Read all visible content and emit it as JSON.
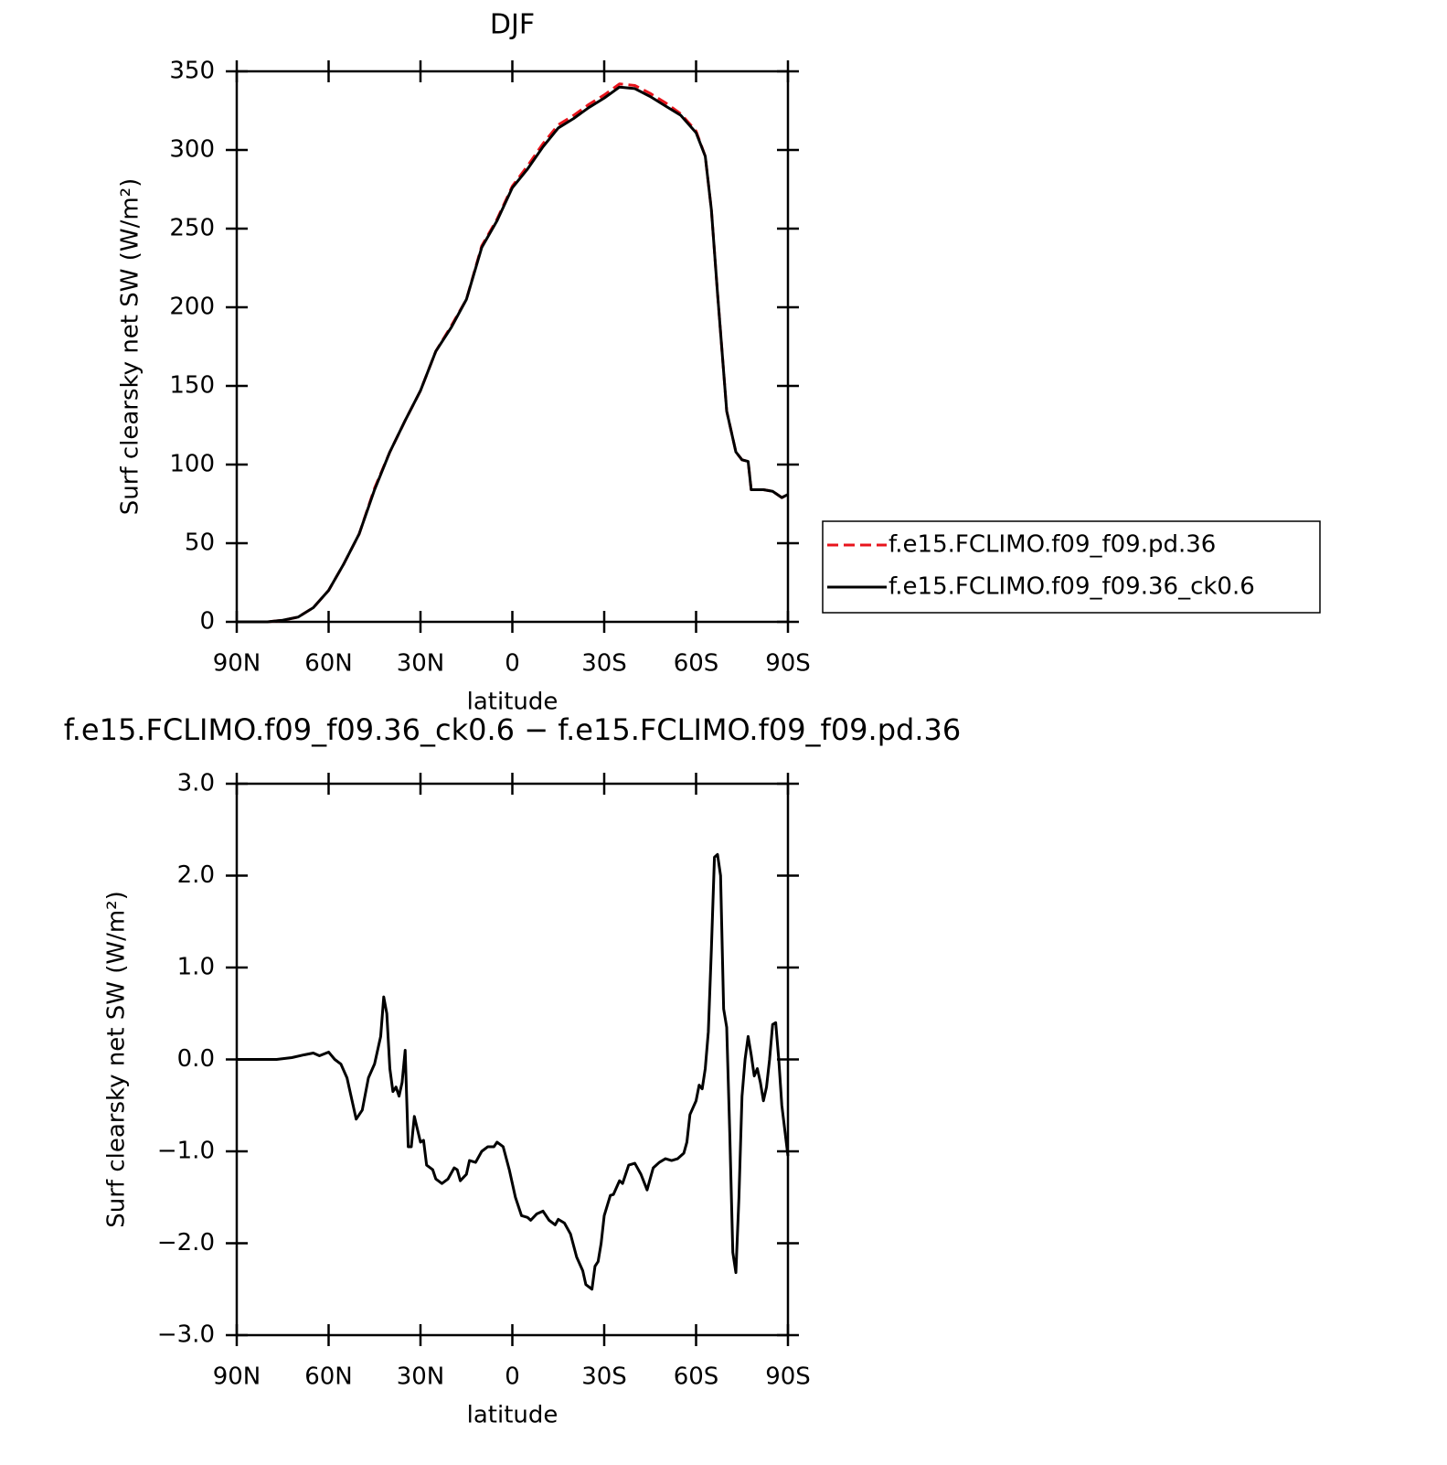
{
  "chart_data": [
    {
      "type": "line",
      "title": "DJF",
      "xlabel": "latitude",
      "ylabel": "Surf clearsky net SW (W/m²)",
      "xlim": [
        90,
        -90
      ],
      "xticks": [
        {
          "value": 90,
          "label": "90N"
        },
        {
          "value": 60,
          "label": "60N"
        },
        {
          "value": 30,
          "label": "30N"
        },
        0,
        {
          "value": -30,
          "label": "30S"
        },
        {
          "value": -60,
          "label": "60S"
        },
        {
          "value": -90,
          "label": "90S"
        }
      ],
      "ylim": [
        0,
        350
      ],
      "yticks": [
        0,
        50,
        100,
        150,
        200,
        250,
        300,
        350
      ],
      "legend": "right",
      "x": [
        90,
        80,
        75,
        70,
        65,
        60,
        55,
        50,
        45,
        40,
        35,
        30,
        25,
        20,
        15,
        10,
        5,
        0,
        -5,
        -10,
        -15,
        -20,
        -25,
        -30,
        -35,
        -40,
        -45,
        -50,
        -55,
        -60,
        -63,
        -65,
        -67,
        -70,
        -73,
        -75,
        -77,
        -78,
        -82,
        -85,
        -88,
        -90
      ],
      "series": [
        {
          "name": "f.e15.FCLIMO.f09_f09.pd.36",
          "color": "#e8141c",
          "dash": true,
          "values": [
            0,
            0,
            1,
            3,
            9,
            20,
            37,
            56,
            85,
            108,
            128,
            147,
            172,
            188,
            205,
            239,
            256,
            277,
            290,
            304,
            316,
            322,
            329,
            335,
            342,
            341,
            336,
            330,
            323,
            312,
            296,
            262,
            209,
            134,
            108,
            103,
            102,
            84,
            84,
            83,
            79,
            81
          ]
        },
        {
          "name": "f.e15.FCLIMO.f09_f09.36_ck0.6",
          "color": "#000000",
          "dash": false,
          "values": [
            0,
            0,
            1,
            3,
            9,
            20,
            37,
            56,
            84,
            108,
            128,
            147,
            172,
            187,
            205,
            238,
            255,
            276,
            288,
            302,
            314,
            320,
            327,
            333,
            340,
            339,
            334,
            328,
            322,
            311,
            296,
            262,
            209,
            134,
            108,
            103,
            102,
            84,
            84,
            83,
            79,
            81
          ]
        }
      ]
    },
    {
      "type": "line",
      "title": "f.e15.FCLIMO.f09_f09.36_ck0.6 − f.e15.FCLIMO.f09_f09.pd.36",
      "xlabel": "latitude",
      "ylabel": "Surf clearsky net SW (W/m²)",
      "xlim": [
        90,
        -90
      ],
      "xticks": [
        {
          "value": 90,
          "label": "90N"
        },
        {
          "value": 60,
          "label": "60N"
        },
        {
          "value": 30,
          "label": "30N"
        },
        0,
        {
          "value": -30,
          "label": "30S"
        },
        {
          "value": -60,
          "label": "60S"
        },
        {
          "value": -90,
          "label": "90S"
        }
      ],
      "ylim": [
        -3,
        3
      ],
      "yticks": [
        {
          "value": -3,
          "label": "−3.0"
        },
        {
          "value": -2,
          "label": "−2.0"
        },
        {
          "value": -1,
          "label": "−1.0"
        },
        {
          "value": 0,
          "label": "0.0"
        },
        {
          "value": 1,
          "label": "1.0"
        },
        {
          "value": 2,
          "label": "2.0"
        },
        {
          "value": 3,
          "label": "3.0"
        }
      ],
      "x": [
        90,
        77,
        72,
        68,
        65,
        63,
        60,
        58,
        56,
        54,
        51,
        49,
        47,
        45,
        43,
        42,
        41,
        40,
        39,
        38,
        37,
        36,
        35,
        34,
        33,
        32,
        30,
        29,
        28,
        26,
        25,
        23,
        21,
        19,
        18,
        17,
        15,
        14,
        12,
        10,
        8,
        6,
        5,
        3,
        1,
        -1,
        -3,
        -5,
        -6,
        -8,
        -10,
        -12,
        -14,
        -15,
        -17,
        -19,
        -21,
        -23,
        -24,
        -26,
        -27,
        -28,
        -29,
        -30,
        -32,
        -33,
        -35,
        -36,
        -37,
        -38,
        -40,
        -42,
        -44,
        -45,
        -46,
        -48,
        -50,
        -52,
        -54,
        -56,
        -57,
        -58,
        -60,
        -61,
        -62,
        -63,
        -64,
        -65,
        -66,
        -67,
        -68,
        -69,
        -70,
        -71,
        -72,
        -73,
        -74,
        -75,
        -76,
        -77,
        -78,
        -79,
        -80,
        -81,
        -82,
        -83,
        -84,
        -85,
        -86,
        -87,
        -88,
        -90
      ],
      "series": [
        {
          "color": "#000000",
          "dash": false,
          "values": [
            0,
            0,
            0.02,
            0.05,
            0.07,
            0.04,
            0.08,
            0,
            -0.05,
            -0.2,
            -0.65,
            -0.55,
            -0.2,
            -0.05,
            0.25,
            0.68,
            0.5,
            -0.1,
            -0.35,
            -0.3,
            -0.4,
            -0.25,
            0.1,
            -0.95,
            -0.95,
            -0.62,
            -0.9,
            -0.88,
            -1.15,
            -1.2,
            -1.3,
            -1.35,
            -1.3,
            -1.18,
            -1.2,
            -1.32,
            -1.25,
            -1.1,
            -1.12,
            -1,
            -0.95,
            -0.95,
            -0.9,
            -0.95,
            -1.2,
            -1.5,
            -1.7,
            -1.72,
            -1.75,
            -1.68,
            -1.65,
            -1.75,
            -1.8,
            -1.74,
            -1.78,
            -1.9,
            -2.15,
            -2.3,
            -2.45,
            -2.5,
            -2.25,
            -2.2,
            -2,
            -1.7,
            -1.48,
            -1.47,
            -1.32,
            -1.35,
            -1.25,
            -1.15,
            -1.13,
            -1.25,
            -1.42,
            -1.3,
            -1.18,
            -1.12,
            -1.08,
            -1.1,
            -1.08,
            -1.02,
            -0.9,
            -0.6,
            -0.45,
            -0.28,
            -0.32,
            -0.1,
            0.3,
            1.2,
            2.2,
            2.23,
            2,
            0.55,
            0.35,
            -0.8,
            -2.1,
            -2.32,
            -1.5,
            -0.4,
            0,
            0.25,
            0.05,
            -0.18,
            -0.1,
            -0.25,
            -0.45,
            -0.3,
            0,
            0.38,
            0.4,
            0,
            -0.5,
            -1.05
          ]
        }
      ]
    }
  ]
}
